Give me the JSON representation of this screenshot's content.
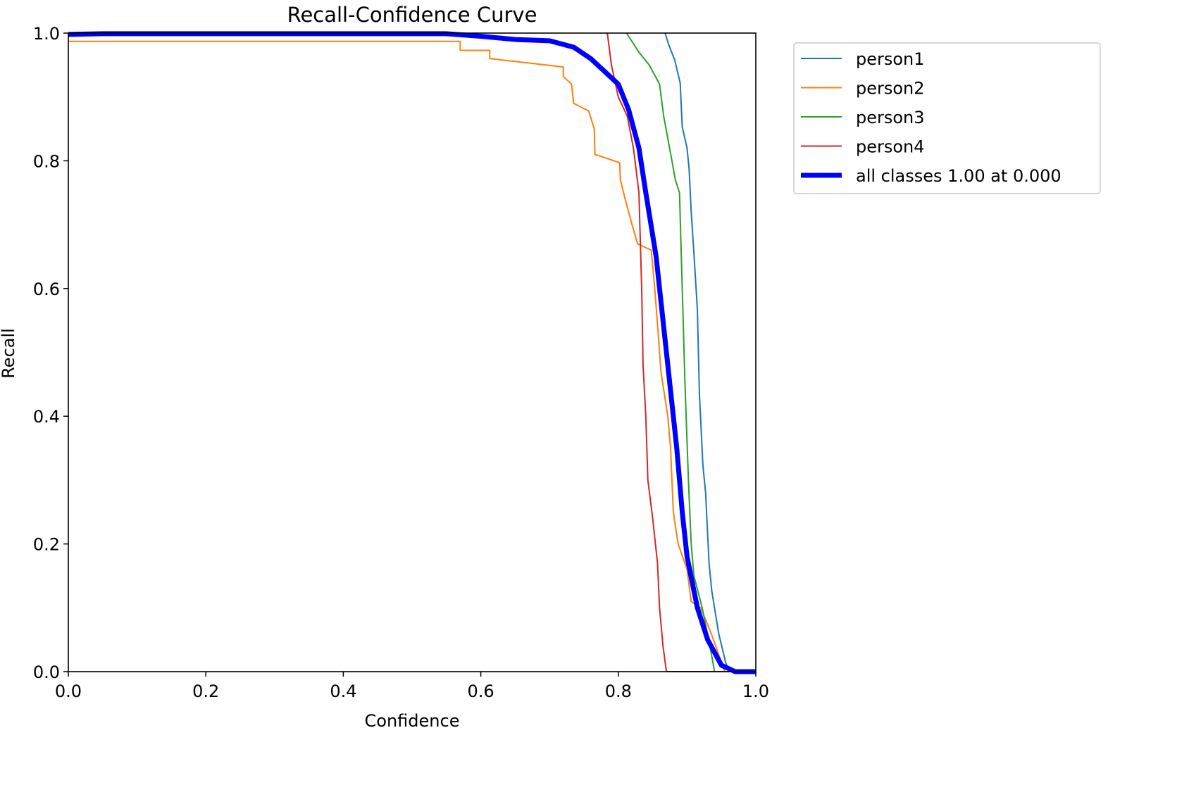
{
  "chart_data": {
    "type": "line",
    "title": "Recall-Confidence Curve",
    "xlabel": "Confidence",
    "ylabel": "Recall",
    "xlim": [
      0,
      1
    ],
    "ylim": [
      0,
      1
    ],
    "xticks": [
      "0.0",
      "0.2",
      "0.4",
      "0.6",
      "0.8",
      "1.0"
    ],
    "yticks": [
      "0.0",
      "0.2",
      "0.4",
      "0.6",
      "0.8",
      "1.0"
    ],
    "grid": false,
    "legend_position": "outside-top-right",
    "series": [
      {
        "name": "person1",
        "color": "#1f77b4",
        "width": "thin",
        "points": [
          [
            0.868,
            1.0
          ],
          [
            0.874,
            0.98
          ],
          [
            0.882,
            0.958
          ],
          [
            0.89,
            0.922
          ],
          [
            0.893,
            0.853
          ],
          [
            0.9,
            0.82
          ],
          [
            0.903,
            0.787
          ],
          [
            0.906,
            0.721
          ],
          [
            0.91,
            0.655
          ],
          [
            0.915,
            0.567
          ],
          [
            0.918,
            0.434
          ],
          [
            0.923,
            0.324
          ],
          [
            0.927,
            0.28
          ],
          [
            0.932,
            0.17
          ],
          [
            0.936,
            0.126
          ],
          [
            0.941,
            0.093
          ],
          [
            0.946,
            0.06
          ],
          [
            0.956,
            0.015
          ],
          [
            0.961,
            0.0
          ],
          [
            1.0,
            0.0
          ]
        ]
      },
      {
        "name": "person2",
        "color": "#ff7f0e",
        "width": "thin",
        "points": [
          [
            0.0,
            0.987
          ],
          [
            0.57,
            0.987
          ],
          [
            0.57,
            0.973
          ],
          [
            0.613,
            0.973
          ],
          [
            0.613,
            0.96
          ],
          [
            0.72,
            0.947
          ],
          [
            0.72,
            0.932
          ],
          [
            0.732,
            0.92
          ],
          [
            0.735,
            0.89
          ],
          [
            0.757,
            0.878
          ],
          [
            0.765,
            0.85
          ],
          [
            0.766,
            0.81
          ],
          [
            0.802,
            0.797
          ],
          [
            0.803,
            0.77
          ],
          [
            0.81,
            0.74
          ],
          [
            0.82,
            0.7
          ],
          [
            0.828,
            0.67
          ],
          [
            0.848,
            0.66
          ],
          [
            0.853,
            0.6
          ],
          [
            0.858,
            0.53
          ],
          [
            0.862,
            0.47
          ],
          [
            0.872,
            0.4
          ],
          [
            0.876,
            0.35
          ],
          [
            0.88,
            0.25
          ],
          [
            0.887,
            0.2
          ],
          [
            0.9,
            0.16
          ],
          [
            0.906,
            0.11
          ],
          [
            0.92,
            0.1
          ],
          [
            0.935,
            0.06
          ],
          [
            0.955,
            0.0
          ],
          [
            1.0,
            0.0
          ]
        ]
      },
      {
        "name": "person3",
        "color": "#2ca02c",
        "width": "thin",
        "points": [
          [
            0.812,
            1.0
          ],
          [
            0.83,
            0.97
          ],
          [
            0.845,
            0.95
          ],
          [
            0.86,
            0.92
          ],
          [
            0.866,
            0.87
          ],
          [
            0.878,
            0.8
          ],
          [
            0.883,
            0.77
          ],
          [
            0.889,
            0.75
          ],
          [
            0.893,
            0.6
          ],
          [
            0.897,
            0.45
          ],
          [
            0.902,
            0.3
          ],
          [
            0.906,
            0.2
          ],
          [
            0.91,
            0.15
          ],
          [
            0.922,
            0.1
          ],
          [
            0.935,
            0.03
          ],
          [
            0.94,
            0.0
          ],
          [
            1.0,
            0.0
          ]
        ]
      },
      {
        "name": "person4",
        "color": "#d62728",
        "width": "thin",
        "points": [
          [
            0.784,
            1.0
          ],
          [
            0.79,
            0.95
          ],
          [
            0.8,
            0.9
          ],
          [
            0.813,
            0.87
          ],
          [
            0.822,
            0.82
          ],
          [
            0.83,
            0.75
          ],
          [
            0.834,
            0.6
          ],
          [
            0.836,
            0.48
          ],
          [
            0.84,
            0.4
          ],
          [
            0.843,
            0.3
          ],
          [
            0.85,
            0.24
          ],
          [
            0.857,
            0.17
          ],
          [
            0.86,
            0.1
          ],
          [
            0.865,
            0.04
          ],
          [
            0.87,
            0.0
          ],
          [
            1.0,
            0.0
          ]
        ]
      },
      {
        "name": "all classes 1.00 at 0.000",
        "color": "#0000ff",
        "width": "thick",
        "points": [
          [
            0.0,
            0.998
          ],
          [
            0.05,
            0.999
          ],
          [
            0.55,
            0.999
          ],
          [
            0.6,
            0.995
          ],
          [
            0.65,
            0.99
          ],
          [
            0.7,
            0.988
          ],
          [
            0.735,
            0.978
          ],
          [
            0.76,
            0.96
          ],
          [
            0.78,
            0.94
          ],
          [
            0.8,
            0.92
          ],
          [
            0.815,
            0.88
          ],
          [
            0.83,
            0.82
          ],
          [
            0.84,
            0.75
          ],
          [
            0.855,
            0.65
          ],
          [
            0.865,
            0.55
          ],
          [
            0.875,
            0.45
          ],
          [
            0.885,
            0.35
          ],
          [
            0.893,
            0.25
          ],
          [
            0.9,
            0.18
          ],
          [
            0.915,
            0.1
          ],
          [
            0.93,
            0.05
          ],
          [
            0.95,
            0.01
          ],
          [
            0.97,
            0.0
          ],
          [
            1.0,
            0.0
          ]
        ]
      }
    ]
  }
}
